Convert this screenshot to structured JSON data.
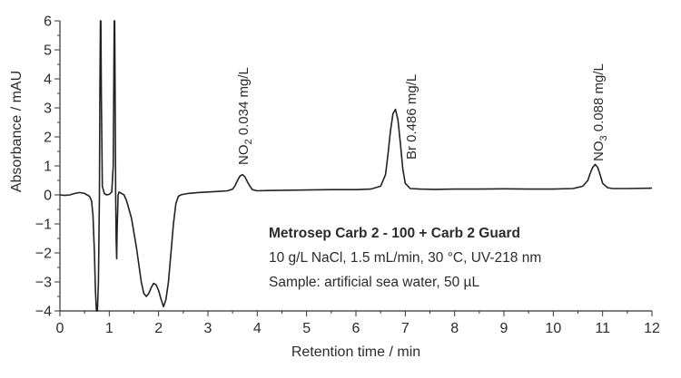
{
  "chart_data": {
    "type": "line",
    "xlabel": "Retention time / min",
    "ylabel": "Absorbance / mAU",
    "xlim": [
      0,
      12
    ],
    "ylim": [
      -4,
      6
    ],
    "x_ticks": [
      "0",
      "1",
      "2",
      "3",
      "4",
      "5",
      "6",
      "7",
      "8",
      "9",
      "10",
      "11",
      "12"
    ],
    "y_ticks": [
      "-4",
      "-3",
      "-2",
      "-1",
      "0",
      "1",
      "2",
      "3",
      "4",
      "5",
      "6"
    ],
    "grid": false,
    "series": [
      {
        "x": [
          0,
          0.1,
          0.2,
          0.3,
          0.4,
          0.5,
          0.55,
          0.6,
          0.64,
          0.67,
          0.7,
          0.72,
          0.74,
          0.76,
          0.78,
          0.8,
          0.81,
          0.82,
          0.83,
          0.84,
          0.86,
          0.9,
          0.95,
          1.0,
          1.05,
          1.08,
          1.1,
          1.11,
          1.12,
          1.13,
          1.14,
          1.15,
          1.16,
          1.18,
          1.2,
          1.25,
          1.3,
          1.35,
          1.45,
          1.55,
          1.6,
          1.65,
          1.7,
          1.75,
          1.8,
          1.85,
          1.9,
          1.95,
          2.0,
          2.05,
          2.1,
          2.15,
          2.2,
          2.25,
          2.3,
          2.35,
          2.4,
          2.45,
          2.5,
          2.6,
          2.8,
          3.0,
          3.2,
          3.4,
          3.5,
          3.55,
          3.6,
          3.65,
          3.7,
          3.75,
          3.8,
          3.85,
          3.9,
          4.0,
          4.2,
          4.5,
          5.0,
          5.5,
          6.0,
          6.3,
          6.5,
          6.6,
          6.65,
          6.7,
          6.75,
          6.8,
          6.85,
          6.9,
          6.95,
          7.0,
          7.1,
          7.3,
          7.6,
          8.0,
          8.5,
          9.0,
          9.5,
          10.0,
          10.4,
          10.6,
          10.7,
          10.75,
          10.8,
          10.85,
          10.9,
          10.95,
          11.0,
          11.1,
          11.2,
          11.5,
          12.0
        ],
        "y": [
          0,
          -0.02,
          0,
          0.05,
          0.08,
          0.05,
          0,
          -0.05,
          -0.2,
          -0.7,
          -2.0,
          -3.3,
          -4.0,
          -4.0,
          -3.0,
          0,
          3.5,
          6.0,
          6.0,
          3.5,
          0.3,
          0.05,
          0,
          0.02,
          0.1,
          1.0,
          6.0,
          6.0,
          3.0,
          0,
          -1.5,
          -2.2,
          -1.2,
          0,
          0.1,
          0.05,
          0,
          -0.2,
          -0.8,
          -1.8,
          -2.4,
          -3.0,
          -3.4,
          -3.5,
          -3.4,
          -3.2,
          -3.05,
          -3.1,
          -3.3,
          -3.6,
          -3.85,
          -3.6,
          -3.0,
          -2.0,
          -1.0,
          -0.3,
          -0.05,
          0,
          0.02,
          0.05,
          0.08,
          0.1,
          0.12,
          0.14,
          0.2,
          0.32,
          0.5,
          0.65,
          0.7,
          0.62,
          0.45,
          0.3,
          0.18,
          0.14,
          0.15,
          0.16,
          0.17,
          0.18,
          0.18,
          0.2,
          0.3,
          0.7,
          1.4,
          2.2,
          2.8,
          2.95,
          2.6,
          1.8,
          0.9,
          0.4,
          0.22,
          0.2,
          0.19,
          0.2,
          0.2,
          0.21,
          0.2,
          0.2,
          0.22,
          0.3,
          0.5,
          0.75,
          0.95,
          1.05,
          0.95,
          0.7,
          0.4,
          0.25,
          0.22,
          0.22,
          0.23
        ]
      }
    ],
    "annotations": [
      {
        "text": "NO",
        "subscript": "2",
        "suffix": " 0.034 mg/L",
        "x": 3.7
      },
      {
        "text": "Br",
        "subscript": "",
        "suffix": " 0.486 mg/L",
        "x": 7.1
      },
      {
        "text": "NO",
        "subscript": "3",
        "suffix": " 0.088 mg/L",
        "x": 10.9
      }
    ],
    "info_box": {
      "title": "Metrosep Carb 2 - 100 + Carb 2 Guard",
      "line1": "10 g/L NaCl, 1.5 mL/min, 30 °C, UV-218 nm",
      "line2": "Sample: artificial sea water, 50 µL"
    },
    "colors": {
      "line": "#222222",
      "axis": "#333333",
      "text": "#2b2b2b"
    }
  }
}
